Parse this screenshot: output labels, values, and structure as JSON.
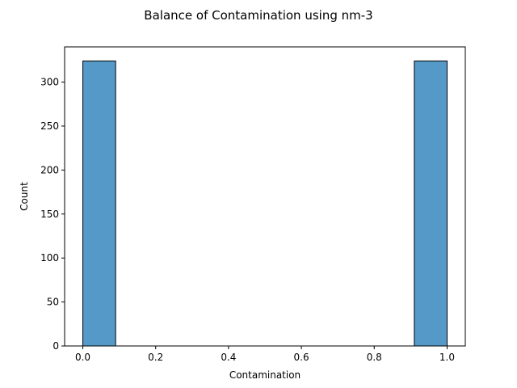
{
  "chart_data": {
    "type": "bar",
    "title": "Balance of Contamination using nm-3",
    "xlabel": "Contamination",
    "ylabel": "Count",
    "xlim": [
      -0.05,
      1.05
    ],
    "ylim": [
      0,
      340
    ],
    "xticks": [
      "0.0",
      "0.2",
      "0.4",
      "0.6",
      "0.8",
      "1.0"
    ],
    "xtick_values": [
      0.0,
      0.2,
      0.4,
      0.6,
      0.8,
      1.0
    ],
    "yticks": [
      "0",
      "50",
      "100",
      "150",
      "200",
      "250",
      "300"
    ],
    "ytick_values": [
      0,
      50,
      100,
      150,
      200,
      250,
      300
    ],
    "bins": [
      {
        "x0": 0.0,
        "x1": 0.09,
        "value": 324
      },
      {
        "x0": 0.91,
        "x1": 1.0,
        "value": 324
      }
    ],
    "bar_color": "#5499c7",
    "edge_color": "#000000",
    "grid": false,
    "legend": "none"
  }
}
